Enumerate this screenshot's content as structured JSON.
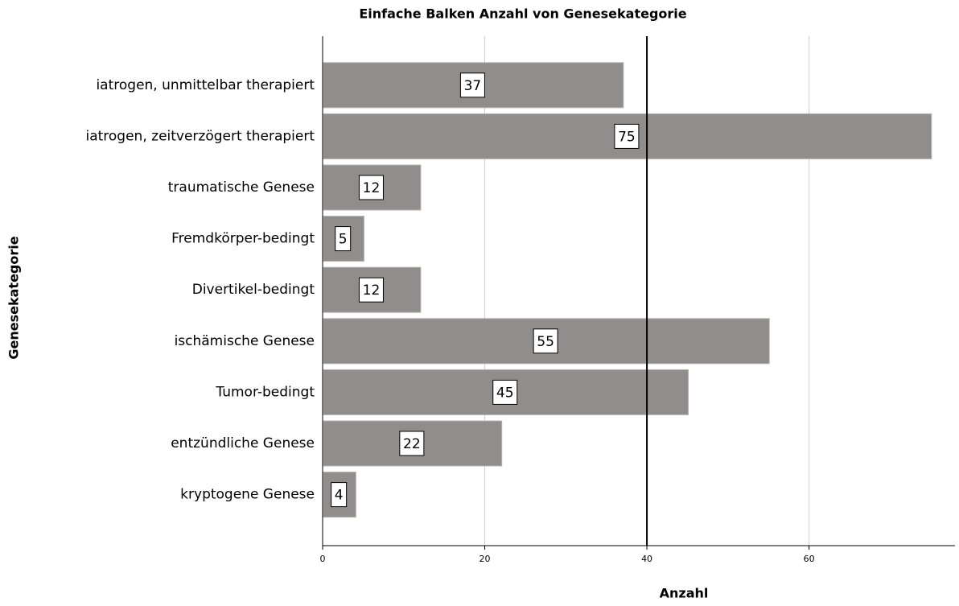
{
  "chart_data": {
    "type": "bar",
    "orientation": "horizontal",
    "title": "Einfache Balken Anzahl von Genesekategorie",
    "x_label": "Anzahl",
    "y_label": "Genesekategorie",
    "categories": [
      "iatrogen, unmittelbar therapiert",
      "iatrogen, zeitverzögert therapiert",
      "traumatische Genese",
      "Fremdkörper-bedingt",
      "Divertikel-bedingt",
      "ischämische Genese",
      "Tumor-bedingt",
      "entzündliche Genese",
      "kryptogene Genese"
    ],
    "values": [
      37,
      75,
      12,
      5,
      12,
      55,
      45,
      22,
      4
    ],
    "color": "#918d8c",
    "xlim": [
      0,
      78
    ],
    "xticks": [
      0,
      20,
      40,
      60
    ],
    "grid": true,
    "reference_line": 40
  }
}
